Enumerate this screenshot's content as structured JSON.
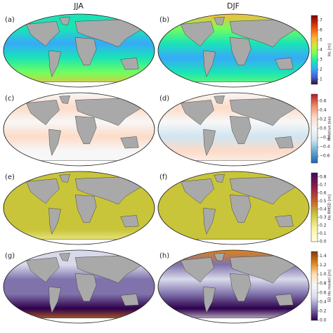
{
  "columns": [
    "JJA",
    "DJF"
  ],
  "panels": [
    {
      "label": "(a)"
    },
    {
      "label": "(b)"
    },
    {
      "label": "(c)"
    },
    {
      "label": "(d)"
    },
    {
      "label": "(e)"
    },
    {
      "label": "(f)"
    },
    {
      "label": "(g)"
    },
    {
      "label": "(h)"
    }
  ],
  "colorbars": [
    {
      "label": "Hs [m]",
      "lim": [
        0.5,
        7.5
      ],
      "ticks": [
        1,
        2,
        3,
        4,
        5,
        6,
        7
      ],
      "colors": [
        "#30123b",
        "#4662d7",
        "#36aaf9",
        "#1ae4b6",
        "#72fe5e",
        "#c8ef34",
        "#faba39",
        "#f66b19",
        "#ca2a04",
        "#7a0403"
      ]
    },
    {
      "label": "Relative bias",
      "lim": [
        -0.75,
        0.75
      ],
      "ticks": [
        {
          "value": -0.6,
          "label": "−0.6"
        },
        {
          "value": -0.4,
          "label": "−0.4"
        },
        {
          "value": -0.2,
          "label": "−0.2"
        },
        {
          "value": 0,
          "label": "0.0"
        },
        0.2,
        0.4,
        0.6
      ],
      "colors": [
        "#2166ac",
        "#67a9cf",
        "#d1e5f0",
        "#f7f7f7",
        "#fddbc7",
        "#ef8a62",
        "#b2182b"
      ]
    },
    {
      "label": "Hs RMSD [m]",
      "lim": [
        0,
        0.85
      ],
      "ticks": [
        {
          "value": 0,
          "label": "0.0"
        },
        0.1,
        0.2,
        0.3,
        0.4,
        0.5,
        0.6,
        0.7,
        0.8
      ],
      "colors": [
        "#ffffe5",
        "#f7f4a0",
        "#c9c53a",
        "#c45a2e",
        "#8c1a4a",
        "#3d0f5c"
      ]
    },
    {
      "label": "SD Hs model [m]",
      "lim": [
        0,
        1.5
      ],
      "ticks": [
        {
          "value": 0,
          "label": "0.0"
        },
        0.2,
        0.4,
        0.6,
        0.8,
        {
          "value": 1,
          "label": "1.0"
        },
        1.2,
        1.4
      ],
      "colors": [
        "#2d004b",
        "#8073ac",
        "#d8daeb",
        "#f7f7f7",
        "#fee0b6",
        "#e08214",
        "#7f3b08"
      ]
    }
  ]
}
